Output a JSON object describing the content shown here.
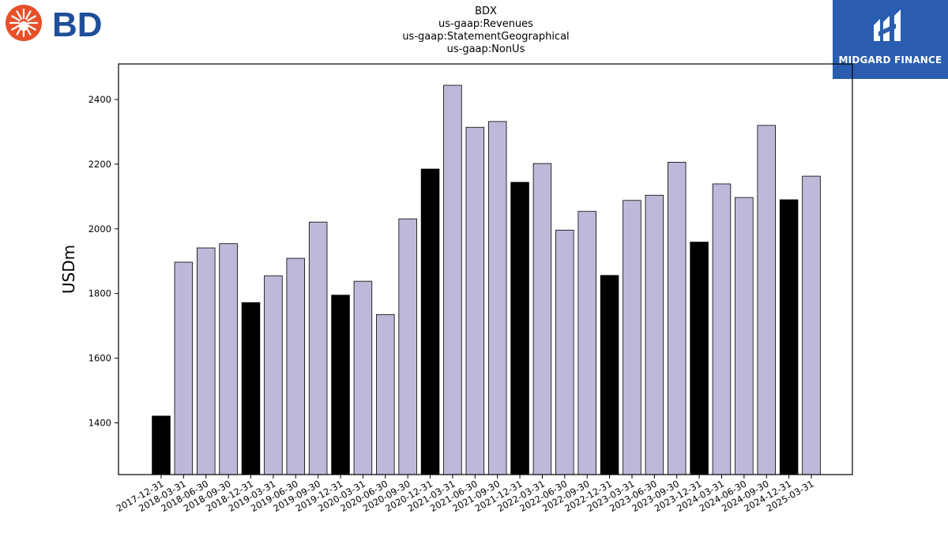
{
  "brand": {
    "left_logo_text": "BD",
    "left_logo_color": "#1f4e9a",
    "left_logo_burst_color": "#e8502a",
    "right_logo_text": "MIDGARD FINANCE",
    "right_logo_bg": "#2a5db0"
  },
  "colors": {
    "bar_fill": "#bcb9d9",
    "bar_fill_q4": "#000000",
    "bar_edge": "#000000"
  },
  "chart_data": {
    "type": "bar",
    "title_lines": [
      "BDX",
      "us-gaap:Revenues",
      "us-gaap:StatementGeographical",
      "us-gaap:NonUs"
    ],
    "xlabel": "",
    "ylabel": "USDm",
    "ylim": [
      1240,
      2510
    ],
    "yticks": [
      1400,
      1600,
      1800,
      2000,
      2200,
      2400
    ],
    "grid": false,
    "categories": [
      "2017-12-31",
      "2018-03-31",
      "2018-06-30",
      "2018-09-30",
      "2018-12-31",
      "2019-03-31",
      "2019-06-30",
      "2019-09-30",
      "2019-12-31",
      "2020-03-31",
      "2020-06-30",
      "2020-09-30",
      "2020-12-31",
      "2021-03-31",
      "2021-06-30",
      "2021-09-30",
      "2021-12-31",
      "2022-03-31",
      "2022-06-30",
      "2022-09-30",
      "2022-12-31",
      "2023-03-31",
      "2023-06-30",
      "2023-09-30",
      "2023-12-31",
      "2024-03-31",
      "2024-06-30",
      "2024-09-30",
      "2024-12-31",
      "2025-03-31"
    ],
    "values": [
      1421,
      1897,
      1941,
      1954,
      1772,
      1855,
      1909,
      2021,
      1795,
      1838,
      1735,
      2031,
      2185,
      2444,
      2314,
      2332,
      2144,
      2202,
      1996,
      2054,
      1856,
      2088,
      2104,
      2206,
      1959,
      2139,
      2097,
      2320,
      2090,
      2163
    ],
    "highlight_categories": [
      "2017-12-31",
      "2018-12-31",
      "2019-12-31",
      "2020-12-31",
      "2021-12-31",
      "2022-12-31",
      "2023-12-31",
      "2024-12-31"
    ]
  }
}
